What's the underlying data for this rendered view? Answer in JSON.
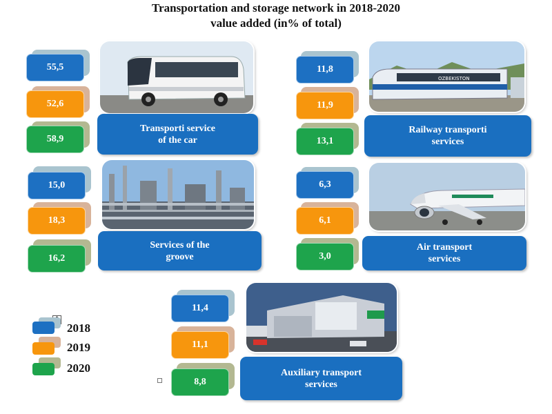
{
  "title_line1": "Transportation and storage network in 2018-2020",
  "title_line2": "value added (in% of total)",
  "colors": {
    "2018": "#1d70c2",
    "2019": "#f7960d",
    "2020": "#1ea44c",
    "shadow_2018": "#a9c4cf",
    "shadow_2019": "#d8b39a",
    "shadow_2020": "#b3b891"
  },
  "legend": [
    {
      "year": "2018",
      "color": "#1d70c2"
    },
    {
      "year": "2019",
      "color": "#f7960d"
    },
    {
      "year": "2020",
      "color": "#1ea44c"
    }
  ],
  "chart_data": {
    "type": "table",
    "title": "Transportation and storage network in 2018-2020 value added (in% of total)",
    "years": [
      "2018",
      "2019",
      "2020"
    ],
    "series": [
      {
        "name": "Transporti service of the car",
        "values": [
          "55,5",
          "52,6",
          "58,9"
        ]
      },
      {
        "name": "Railway transporti services",
        "values": [
          "11,8",
          "11,9",
          "13,1"
        ]
      },
      {
        "name": "Services of the groove",
        "values": [
          "15,0",
          "18,3",
          "16,2"
        ]
      },
      {
        "name": "Air transport services",
        "values": [
          "6,3",
          "6,1",
          "3,0"
        ]
      },
      {
        "name": "Auxiliary transport services",
        "values": [
          "11,4",
          "11,1",
          "8,8"
        ]
      }
    ]
  },
  "labels": {
    "car": [
      "Transporti service",
      "of the car"
    ],
    "rail": [
      "Railway transporti",
      "services"
    ],
    "groove": [
      "Services of the",
      "groove"
    ],
    "air": [
      "Air transport",
      "services"
    ],
    "aux": [
      "Auxiliary transport",
      "services"
    ]
  },
  "icons": {
    "car": "bus-photo",
    "rail": "train-photo",
    "groove": "refinery-photo",
    "air": "airplane-photo",
    "aux": "warehouse-photo"
  },
  "train_text": "OZBEKISTON"
}
